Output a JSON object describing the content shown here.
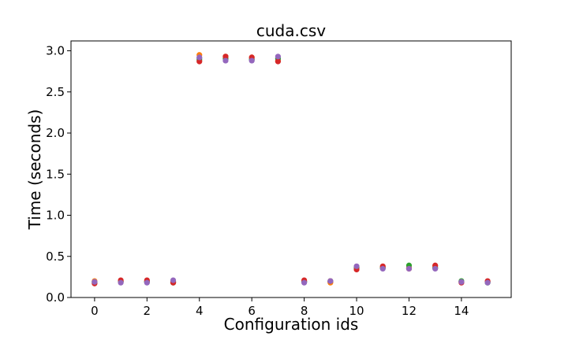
{
  "chart_data": {
    "type": "scatter",
    "title": "cuda.csv",
    "xlabel": "Configuration ids",
    "ylabel": "Time (seconds)",
    "xlim": [
      -0.9,
      15.9
    ],
    "ylim": [
      0.0,
      3.12
    ],
    "xticks": [
      0,
      2,
      4,
      6,
      8,
      10,
      12,
      14
    ],
    "xtick_labels": [
      "0",
      "2",
      "4",
      "6",
      "8",
      "10",
      "12",
      "14"
    ],
    "yticks": [
      0.0,
      0.5,
      1.0,
      1.5,
      2.0,
      2.5,
      3.0
    ],
    "ytick_labels": [
      "0.0",
      "0.5",
      "1.0",
      "1.5",
      "2.0",
      "2.5",
      "3.0"
    ],
    "grid": false,
    "legend": "none",
    "x": [
      0,
      1,
      2,
      3,
      4,
      5,
      6,
      7,
      8,
      9,
      10,
      11,
      12,
      13,
      14,
      15
    ],
    "series": [
      {
        "color": "#1f77b4",
        "values": [
          0.19,
          0.19,
          0.19,
          0.19,
          2.91,
          2.9,
          2.9,
          2.9,
          0.19,
          0.19,
          0.36,
          0.36,
          0.36,
          0.36,
          0.19,
          0.19
        ]
      },
      {
        "color": "#ff7f0e",
        "values": [
          0.2,
          0.19,
          0.2,
          0.19,
          2.95,
          2.93,
          2.92,
          2.88,
          0.2,
          0.18,
          0.37,
          0.37,
          0.36,
          0.38,
          0.19,
          0.19
        ]
      },
      {
        "color": "#2ca02c",
        "values": [
          0.18,
          0.2,
          0.19,
          0.18,
          2.89,
          2.91,
          2.89,
          2.91,
          0.19,
          0.2,
          0.36,
          0.36,
          0.39,
          0.36,
          0.2,
          0.18
        ]
      },
      {
        "color": "#d62728",
        "values": [
          0.17,
          0.21,
          0.21,
          0.18,
          2.87,
          2.93,
          2.92,
          2.87,
          0.21,
          0.2,
          0.34,
          0.38,
          0.35,
          0.39,
          0.18,
          0.2
        ]
      },
      {
        "color": "#9467bd",
        "values": [
          0.19,
          0.18,
          0.18,
          0.21,
          2.92,
          2.88,
          2.88,
          2.93,
          0.18,
          0.2,
          0.38,
          0.35,
          0.35,
          0.35,
          0.19,
          0.18
        ]
      }
    ]
  }
}
